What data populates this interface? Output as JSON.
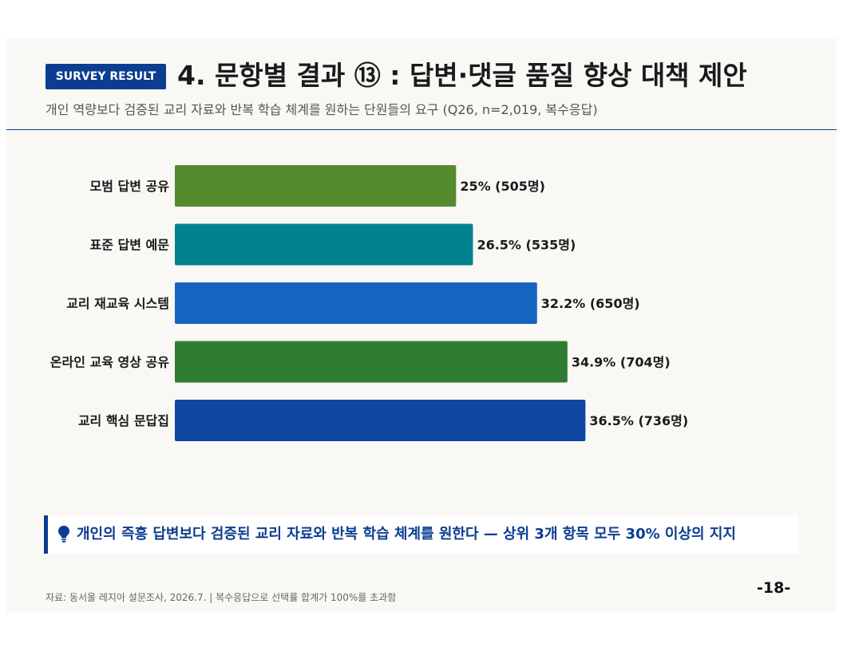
{
  "header": {
    "badge": "SURVEY RESULT",
    "title": "4. 문항별 결과 ⑬ : 답변·댓글 품질 향상 대책 제안",
    "subtitle": "개인 역량보다 검증된 교리 자료와 반복 학습 체계를 원하는 단원들의 요구 (Q26, n=2,019, 복수응답)"
  },
  "chart_data": {
    "type": "bar",
    "orientation": "horizontal",
    "categories": [
      "모범 답변 공유",
      "표준 답변 예문",
      "교리 재교육 시스템",
      "온라인 교육 영상 공유",
      "교리 핵심 문답집"
    ],
    "values": [
      25,
      26.5,
      32.2,
      34.9,
      36.5
    ],
    "data_labels": [
      "25% (505명)",
      "26.5% (535명)",
      "32.2% (650명)",
      "34.9% (704명)",
      "36.5% (736명)"
    ],
    "colors": [
      "#558b2f",
      "#00838f",
      "#1565c0",
      "#2e7d32",
      "#0d47a1"
    ],
    "xlim": [
      0,
      54
    ],
    "grid": false
  },
  "callout": {
    "icon": "lightbulb-icon",
    "text": "개인의 즉흥 답변보다 검증된 교리 자료와 반복 학습 체계를 원한다 — 상위 3개 항목 모두 30% 이상의 지지"
  },
  "footer": {
    "source": "자료: 동서울 레지아 설문조사, 2026.7. | 복수응답으로 선택률 합계가 100%를 초과함",
    "page": "-18-"
  },
  "colors": {
    "accent": "#0b3d91",
    "background": "#f9f8f5"
  }
}
